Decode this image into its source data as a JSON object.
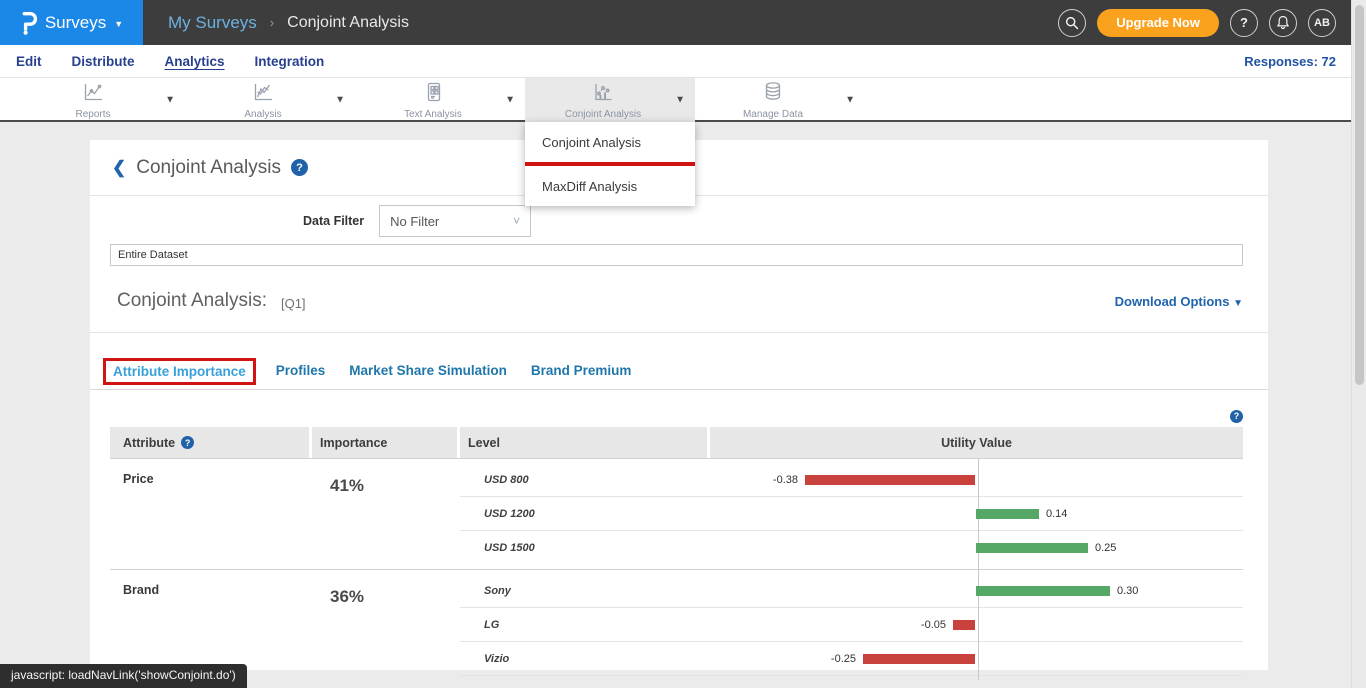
{
  "topbar": {
    "product_label": "Surveys",
    "breadcrumb": {
      "parent": "My Surveys",
      "separator": "›",
      "current": "Conjoint Analysis"
    },
    "upgrade_label": "Upgrade Now",
    "help_label": "?",
    "avatar_label": "AB"
  },
  "nav": {
    "items": [
      {
        "label": "Edit",
        "active": false
      },
      {
        "label": "Distribute",
        "active": false
      },
      {
        "label": "Analytics",
        "active": true
      },
      {
        "label": "Integration",
        "active": false
      }
    ],
    "responses": "Responses: 72"
  },
  "toolbar": {
    "items": [
      {
        "label": "Reports",
        "icon": "reports-chart-icon",
        "active": false
      },
      {
        "label": "Analysis",
        "icon": "analysis-chart-icon",
        "active": false
      },
      {
        "label": "Text Analysis",
        "icon": "text-analysis-icon",
        "active": false
      },
      {
        "label": "Conjoint Analysis",
        "icon": "conjoint-analysis-icon",
        "active": true
      },
      {
        "label": "Manage Data",
        "icon": "database-icon",
        "active": false
      }
    ]
  },
  "dropdown": {
    "items": [
      {
        "label": "Conjoint Analysis",
        "annotated": true
      },
      {
        "label": "MaxDiff Analysis",
        "annotated": false
      }
    ]
  },
  "page": {
    "title": "Conjoint Analysis",
    "data_filter_label": "Data Filter",
    "data_filter_value": "No Filter",
    "dataset_value": "Entire Dataset",
    "section_heading": "Conjoint Analysis:",
    "section_question": "[Q1]",
    "download_label": "Download Options",
    "tabs": [
      {
        "label": "Attribute Importance",
        "active": true,
        "annotated": true
      },
      {
        "label": "Profiles",
        "active": false,
        "annotated": false
      },
      {
        "label": "Market Share Simulation",
        "active": false,
        "annotated": false
      },
      {
        "label": "Brand Premium",
        "active": false,
        "annotated": false
      }
    ]
  },
  "statusbar": {
    "text": "javascript: loadNavLink('showConjoint.do')"
  },
  "colors": {
    "brand_blue": "#1b87e6",
    "topbar_dark": "#3d3d3d",
    "upgrade_orange": "#faa21e",
    "nav_blue": "#263f8f",
    "link_blue": "#2064ad",
    "tab_active_blue": "#3aa0d8",
    "annotation_red": "#d01414",
    "positive_green": "#55a765",
    "negative_red": "#c9413d"
  },
  "chart_data": {
    "type": "bar",
    "orientation": "horizontal",
    "title": "Conjoint Analysis: [Q1] — Attribute Importance",
    "columns": [
      "Attribute",
      "Importance",
      "Level",
      "Utility Value"
    ],
    "groups": [
      {
        "attribute": "Price",
        "importance": "41%",
        "levels": [
          {
            "label": "USD 800",
            "value": -0.38
          },
          {
            "label": "USD 1200",
            "value": 0.14
          },
          {
            "label": "USD 1500",
            "value": 0.25
          }
        ]
      },
      {
        "attribute": "Brand",
        "importance": "36%",
        "levels": [
          {
            "label": "Sony",
            "value": 0.3
          },
          {
            "label": "LG",
            "value": -0.05
          },
          {
            "label": "Vizio",
            "value": -0.25
          }
        ]
      }
    ],
    "positive_color": "#55a765",
    "negative_color": "#c9413d",
    "axis_zero_centered": true,
    "value_format": "0.00"
  }
}
